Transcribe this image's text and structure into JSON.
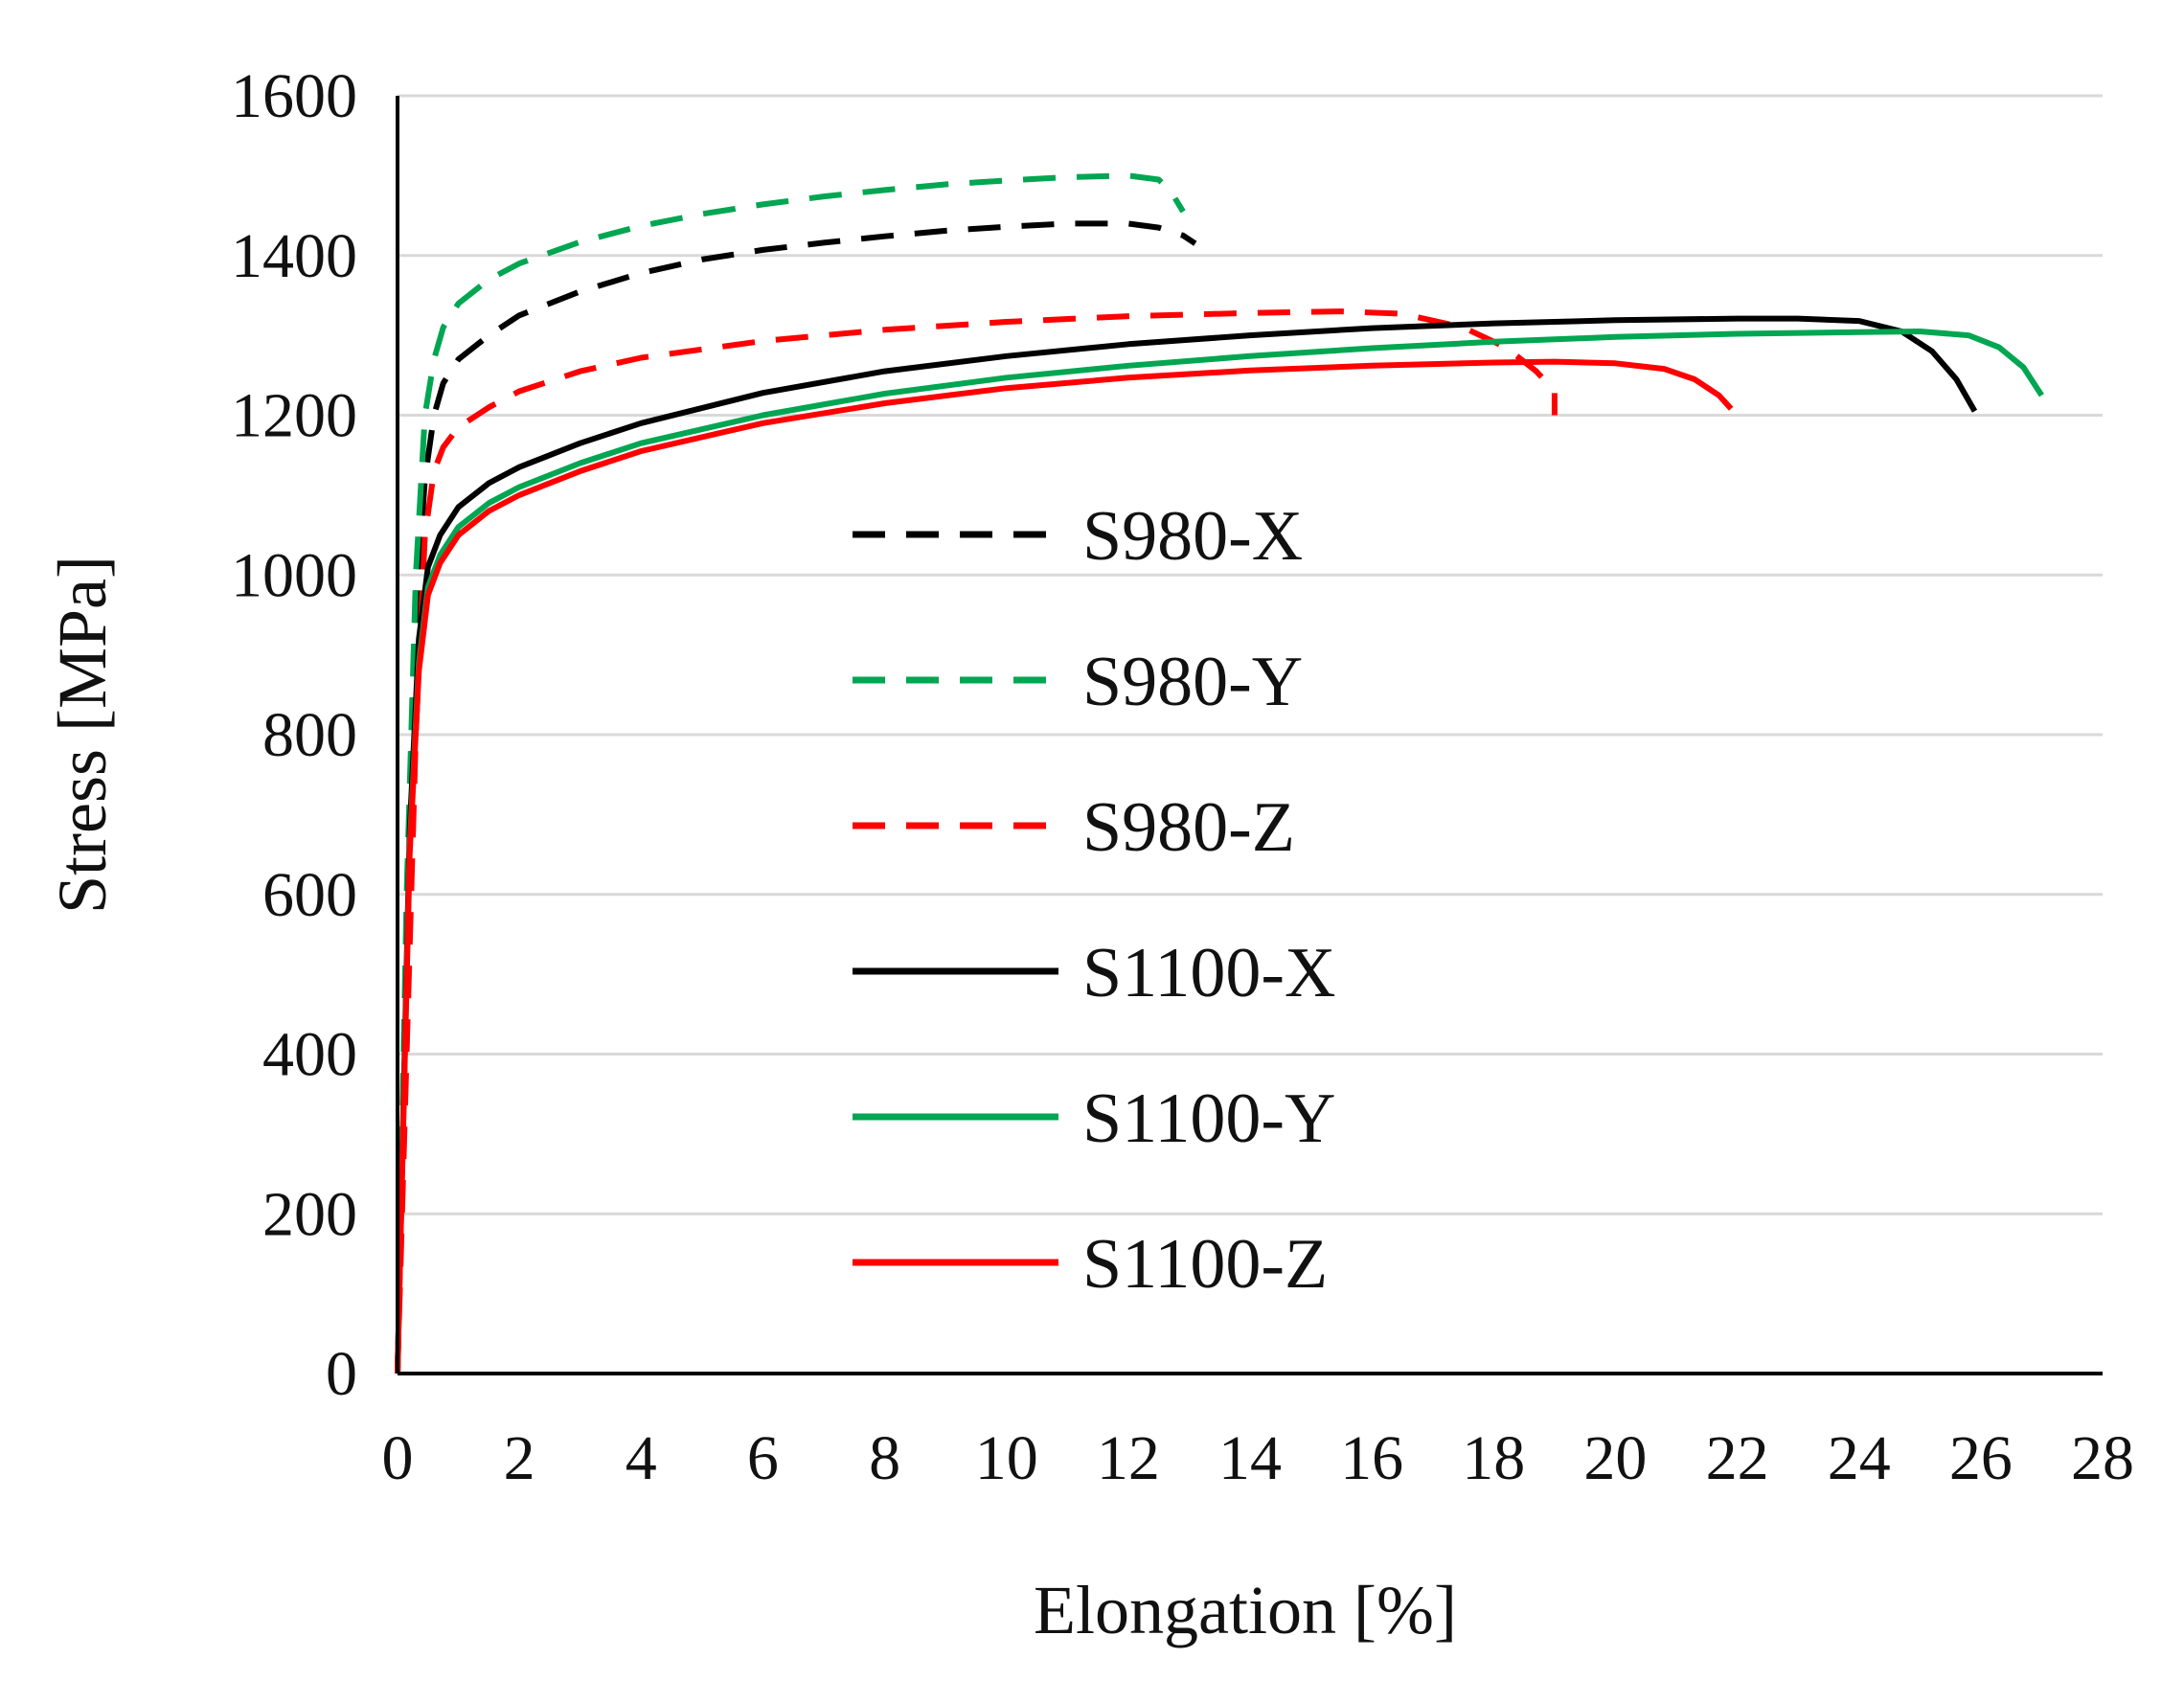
{
  "chart_data": {
    "type": "line",
    "title": "",
    "xlabel": "Elongation [%]",
    "ylabel": "Stress [MPa]",
    "xlim": [
      0,
      28
    ],
    "ylim": [
      0,
      1600
    ],
    "xticks": [
      "0",
      "2",
      "4",
      "6",
      "8",
      "10",
      "12",
      "14",
      "16",
      "18",
      "20",
      "22",
      "24",
      "26",
      "28"
    ],
    "yticks": [
      "0",
      "200",
      "400",
      "600",
      "800",
      "1000",
      "1200",
      "1400",
      "1600"
    ],
    "grid": "horizontal",
    "legend_position": "center-left",
    "series": [
      {
        "name": "S980-X",
        "color": "#000000",
        "dash": "dashed",
        "x": [
          0,
          0.15,
          0.3,
          0.45,
          0.6,
          0.75,
          1,
          1.5,
          2,
          3,
          4,
          5,
          6,
          7,
          8,
          9,
          10,
          11,
          12,
          12.5,
          12.9,
          13.1
        ],
        "y": [
          0,
          550,
          950,
          1120,
          1200,
          1240,
          1270,
          1300,
          1325,
          1355,
          1378,
          1395,
          1407,
          1416,
          1424,
          1431,
          1436,
          1440,
          1440,
          1435,
          1425,
          1415
        ]
      },
      {
        "name": "S980-Y",
        "color": "#00a651",
        "dash": "dashed",
        "x": [
          0,
          0.15,
          0.3,
          0.45,
          0.6,
          0.75,
          1,
          1.5,
          2,
          3,
          4,
          5,
          6,
          7,
          8,
          9,
          10,
          11,
          12,
          12.5,
          12.7,
          12.9
        ],
        "y": [
          0,
          600,
          1000,
          1200,
          1270,
          1310,
          1340,
          1370,
          1390,
          1417,
          1437,
          1452,
          1464,
          1474,
          1482,
          1489,
          1494,
          1498,
          1500,
          1495,
          1480,
          1455
        ]
      },
      {
        "name": "S980-Z",
        "color": "#ff0000",
        "dash": "dashed",
        "x": [
          0,
          0.15,
          0.3,
          0.45,
          0.6,
          0.75,
          1,
          1.5,
          2,
          3,
          4,
          6,
          8,
          10,
          12,
          14,
          15.5,
          16.5,
          17.5,
          18.2,
          18.7,
          19,
          19
        ],
        "y": [
          0,
          400,
          800,
          1050,
          1130,
          1160,
          1185,
          1210,
          1230,
          1255,
          1272,
          1293,
          1307,
          1317,
          1324,
          1328,
          1330,
          1327,
          1310,
          1285,
          1255,
          1230,
          1200
        ]
      },
      {
        "name": "S1100-X",
        "color": "#000000",
        "dash": "solid",
        "x": [
          0,
          0.1,
          0.2,
          0.35,
          0.5,
          0.7,
          1,
          1.5,
          2,
          3,
          4,
          6,
          8,
          10,
          12,
          14,
          16,
          18,
          20,
          22,
          23,
          24,
          24.7,
          25.2,
          25.6,
          25.9
        ],
        "y": [
          0,
          350,
          680,
          920,
          1010,
          1050,
          1085,
          1115,
          1135,
          1165,
          1190,
          1228,
          1255,
          1274,
          1289,
          1300,
          1309,
          1315,
          1319,
          1321,
          1321,
          1318,
          1305,
          1280,
          1245,
          1205
        ]
      },
      {
        "name": "S1100-Y",
        "color": "#00a651",
        "dash": "solid",
        "x": [
          0,
          0.1,
          0.2,
          0.35,
          0.5,
          0.7,
          1,
          1.5,
          2,
          3,
          4,
          6,
          8,
          10,
          12,
          14,
          16,
          18,
          20,
          22,
          24,
          25,
          25.8,
          26.3,
          26.7,
          27
        ],
        "y": [
          0,
          340,
          660,
          890,
          985,
          1025,
          1060,
          1090,
          1110,
          1140,
          1165,
          1200,
          1227,
          1247,
          1262,
          1274,
          1284,
          1292,
          1298,
          1302,
          1304,
          1305,
          1300,
          1285,
          1260,
          1225
        ]
      },
      {
        "name": "S1100-Z",
        "color": "#ff0000",
        "dash": "solid",
        "x": [
          0,
          0.1,
          0.2,
          0.35,
          0.5,
          0.7,
          1,
          1.5,
          2,
          3,
          4,
          6,
          8,
          10,
          12,
          14,
          16,
          18,
          19,
          20,
          20.8,
          21.3,
          21.7,
          21.9
        ],
        "y": [
          0,
          330,
          650,
          880,
          975,
          1015,
          1050,
          1080,
          1100,
          1130,
          1155,
          1190,
          1215,
          1234,
          1247,
          1256,
          1262,
          1266,
          1267,
          1265,
          1258,
          1245,
          1225,
          1208
        ]
      }
    ]
  }
}
